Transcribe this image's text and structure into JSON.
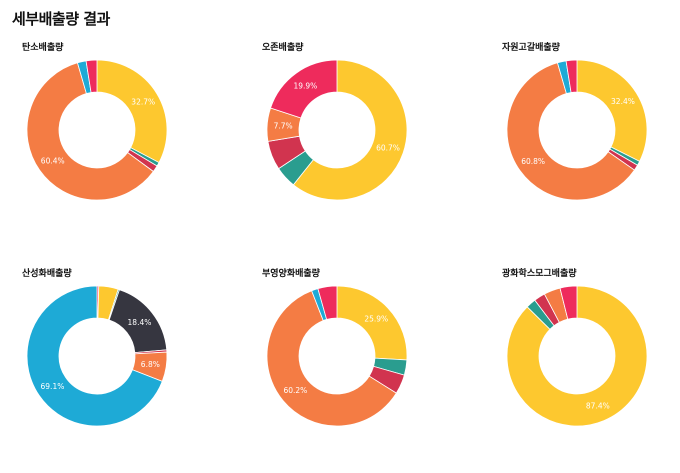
{
  "page": {
    "title": "세부배출량 결과"
  },
  "colors": {
    "yellow": "#fdc82f",
    "teal": "#2a9d8f",
    "crimson": "#d1344f",
    "orange": "#f47c44",
    "blue": "#1eaad6",
    "pink": "#ee2b5c",
    "dark": "#363640"
  },
  "chart_data": [
    {
      "type": "pie",
      "title": "탄소배출량",
      "series": [
        {
          "name": "",
          "value": 32.7,
          "color": "yellow",
          "label": "32.7%"
        },
        {
          "name": "",
          "value": 0.9,
          "color": "teal",
          "label": ""
        },
        {
          "name": "",
          "value": 1.5,
          "color": "crimson",
          "label": ""
        },
        {
          "name": "",
          "value": 60.4,
          "color": "orange",
          "label": "60.4%"
        },
        {
          "name": "",
          "value": 2.0,
          "color": "blue",
          "label": ""
        },
        {
          "name": "",
          "value": 2.5,
          "color": "pink",
          "label": ""
        }
      ]
    },
    {
      "type": "pie",
      "title": "오존배출량",
      "series": [
        {
          "name": "",
          "value": 60.7,
          "color": "yellow",
          "label": "60.7%"
        },
        {
          "name": "",
          "value": 5.0,
          "color": "teal",
          "label": ""
        },
        {
          "name": "",
          "value": 6.7,
          "color": "crimson",
          "label": ""
        },
        {
          "name": "",
          "value": 7.7,
          "color": "orange",
          "label": "7.7%"
        },
        {
          "name": "",
          "value": 19.9,
          "color": "pink",
          "label": "19.9%"
        }
      ]
    },
    {
      "type": "pie",
      "title": "자원고갈배출량",
      "series": [
        {
          "name": "",
          "value": 32.4,
          "color": "yellow",
          "label": "32.4%"
        },
        {
          "name": "",
          "value": 1.0,
          "color": "teal",
          "label": ""
        },
        {
          "name": "",
          "value": 1.3,
          "color": "crimson",
          "label": ""
        },
        {
          "name": "",
          "value": 60.8,
          "color": "orange",
          "label": "60.8%"
        },
        {
          "name": "",
          "value": 2.0,
          "color": "blue",
          "label": ""
        },
        {
          "name": "",
          "value": 2.5,
          "color": "pink",
          "label": ""
        }
      ]
    },
    {
      "type": "pie",
      "title": "산성화배출량",
      "series": [
        {
          "name": "",
          "value": 0.4,
          "color": "pink",
          "label": ""
        },
        {
          "name": "",
          "value": 4.5,
          "color": "yellow",
          "label": ""
        },
        {
          "name": "",
          "value": 0.3,
          "color": "teal",
          "label": ""
        },
        {
          "name": "",
          "value": 18.4,
          "color": "dark",
          "label": "18.4%"
        },
        {
          "name": "",
          "value": 0.5,
          "color": "crimson",
          "label": ""
        },
        {
          "name": "",
          "value": 6.8,
          "color": "orange",
          "label": "6.8%"
        },
        {
          "name": "",
          "value": 69.1,
          "color": "blue",
          "label": "69.1%"
        }
      ]
    },
    {
      "type": "pie",
      "title": "부영양화배출량",
      "series": [
        {
          "name": "",
          "value": 25.9,
          "color": "yellow",
          "label": "25.9%"
        },
        {
          "name": "",
          "value": 3.5,
          "color": "teal",
          "label": ""
        },
        {
          "name": "",
          "value": 4.5,
          "color": "crimson",
          "label": ""
        },
        {
          "name": "",
          "value": 60.2,
          "color": "orange",
          "label": "60.2%"
        },
        {
          "name": "",
          "value": 1.5,
          "color": "blue",
          "label": ""
        },
        {
          "name": "",
          "value": 4.4,
          "color": "pink",
          "label": ""
        }
      ]
    },
    {
      "type": "pie",
      "title": "광화학스모그배출량",
      "series": [
        {
          "name": "",
          "value": 87.4,
          "color": "yellow",
          "label": "87.4%"
        },
        {
          "name": "",
          "value": 2.3,
          "color": "teal",
          "label": ""
        },
        {
          "name": "",
          "value": 2.6,
          "color": "crimson",
          "label": ""
        },
        {
          "name": "",
          "value": 3.8,
          "color": "orange",
          "label": ""
        },
        {
          "name": "",
          "value": 3.9,
          "color": "pink",
          "label": ""
        }
      ]
    }
  ]
}
